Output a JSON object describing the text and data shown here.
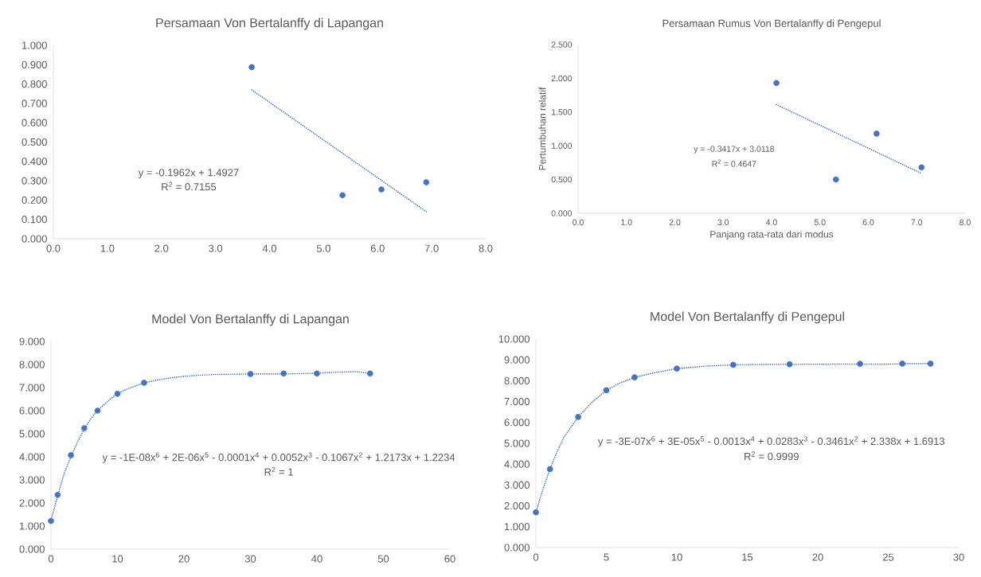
{
  "chart_data": [
    {
      "type": "scatter",
      "title": "Persamaan Von Bertalanffy di Lapangan",
      "xlim": [
        0,
        8
      ],
      "xticks": [
        {
          "value": 0,
          "label": "0.0"
        },
        {
          "value": 1,
          "label": "1.0"
        },
        {
          "value": 2,
          "label": "2.0"
        },
        {
          "value": 3,
          "label": "3.0"
        },
        {
          "value": 4,
          "label": "4.0"
        },
        {
          "value": 5,
          "label": "5.0"
        },
        {
          "value": 6,
          "label": "6.0"
        },
        {
          "value": 7,
          "label": "7.0"
        },
        {
          "value": 8,
          "label": "8.0"
        }
      ],
      "ylim": [
        0,
        1
      ],
      "yticks": [
        {
          "value": 0,
          "label": "0.000"
        },
        {
          "value": 0.1,
          "label": "0.100"
        },
        {
          "value": 0.2,
          "label": "0.200"
        },
        {
          "value": 0.3,
          "label": "0.300"
        },
        {
          "value": 0.4,
          "label": "0.400"
        },
        {
          "value": 0.5,
          "label": "0.500"
        },
        {
          "value": 0.6,
          "label": "0.600"
        },
        {
          "value": 0.7,
          "label": "0.700"
        },
        {
          "value": 0.8,
          "label": "0.800"
        },
        {
          "value": 0.9,
          "label": "0.900"
        },
        {
          "value": 1,
          "label": "1.000"
        }
      ],
      "series": [
        {
          "color": "#4472c4",
          "marker": "circle",
          "x": [
            3.67,
            5.35,
            6.07,
            6.9
          ],
          "values": [
            0.887,
            0.225,
            0.255,
            0.292
          ]
        },
        {
          "type": "line",
          "color": "#4472c4",
          "marker": "none",
          "line_style": "dotted",
          "x": [
            3.67,
            6.9
          ],
          "values": [
            0.77,
            0.14
          ]
        }
      ],
      "annotations": [
        "y = -0.1962x + 1.4927",
        "R$^{2}$ = 0.7155"
      ]
    },
    {
      "type": "scatter",
      "title": "Persamaan Rumus Von Bertalanffy di Pengepul",
      "xlabel": "Panjang rata-rata dari modus",
      "ylabel": "Pertumbuhan relatif",
      "xlim": [
        0,
        8
      ],
      "xticks": [
        {
          "value": 0,
          "label": "0.0"
        },
        {
          "value": 1,
          "label": "1.0"
        },
        {
          "value": 2,
          "label": "2.0"
        },
        {
          "value": 3,
          "label": "3.0"
        },
        {
          "value": 4,
          "label": "4.0"
        },
        {
          "value": 5,
          "label": "5.0"
        },
        {
          "value": 6,
          "label": "6.0"
        },
        {
          "value": 7,
          "label": "7.0"
        },
        {
          "value": 8,
          "label": "8.0"
        }
      ],
      "ylim": [
        0,
        2.5
      ],
      "yticks": [
        {
          "value": 0,
          "label": "0.000"
        },
        {
          "value": 0.5,
          "label": "0.500"
        },
        {
          "value": 1,
          "label": "1.000"
        },
        {
          "value": 1.5,
          "label": "1.500"
        },
        {
          "value": 2,
          "label": "2.000"
        },
        {
          "value": 2.5,
          "label": "2.500"
        }
      ],
      "series": [
        {
          "color": "#4472c4",
          "marker": "circle",
          "x": [
            4.1,
            5.33,
            6.17,
            7.1
          ],
          "values": [
            1.93,
            0.5,
            1.18,
            0.68
          ]
        },
        {
          "type": "line",
          "color": "#4472c4",
          "marker": "none",
          "line_style": "dotted",
          "x": [
            4.1,
            7.1
          ],
          "values": [
            1.61,
            0.59
          ]
        }
      ],
      "annotations": [
        "y = -0.3417x + 3.0118",
        "R$^{2}$ = 0.4647"
      ]
    },
    {
      "type": "scatter",
      "title": "Model Von Bertalanffy di Lapangan",
      "xlim": [
        0,
        60
      ],
      "xticks": [
        0,
        10,
        20,
        30,
        40,
        50,
        60
      ],
      "ylim": [
        0,
        9
      ],
      "yticks": [
        {
          "value": 0,
          "label": "0.000"
        },
        {
          "value": 1,
          "label": "1.000"
        },
        {
          "value": 2,
          "label": "2.000"
        },
        {
          "value": 3,
          "label": "3.000"
        },
        {
          "value": 4,
          "label": "4.000"
        },
        {
          "value": 5,
          "label": "5.000"
        },
        {
          "value": 6,
          "label": "6.000"
        },
        {
          "value": 7,
          "label": "7.000"
        },
        {
          "value": 8,
          "label": "8.000"
        },
        {
          "value": 9,
          "label": "9.000"
        }
      ],
      "series": [
        {
          "color": "#4472c4",
          "marker": "circle",
          "x": [
            0,
            1,
            3,
            5,
            7,
            10,
            14,
            30,
            35,
            40,
            48
          ],
          "values": [
            1.22,
            2.35,
            4.07,
            5.24,
            6.0,
            6.73,
            7.21,
            7.59,
            7.61,
            7.61,
            7.61
          ]
        },
        {
          "type": "line",
          "color": "#4472c4",
          "marker": "none",
          "line_style": "dotted",
          "x": [
            0,
            1,
            2,
            3,
            4,
            5,
            6,
            7,
            8.5,
            10,
            12,
            14,
            16,
            18,
            20,
            22,
            25,
            28,
            30,
            35,
            40,
            43,
            46,
            48
          ],
          "values": [
            1.25,
            2.3,
            3.3,
            4.0,
            4.65,
            5.2,
            5.65,
            6.0,
            6.4,
            6.75,
            7.0,
            7.2,
            7.33,
            7.42,
            7.49,
            7.53,
            7.57,
            7.58,
            7.59,
            7.59,
            7.62,
            7.67,
            7.69,
            7.61
          ]
        }
      ],
      "annotations": [
        "y = -1E-08x$^{6}$ + 2E-06x$^{5}$ - 0.0001x$^{4}$ + 0.0052x$^{3}$ - 0.1067x$^{2}$ + 1.2173x + 1.2234",
        "R$^{2}$ = 1"
      ]
    },
    {
      "type": "scatter",
      "title": "Model Von Bertalanffy di Pengepul",
      "xlim": [
        0,
        30
      ],
      "xticks": [
        0,
        5,
        10,
        15,
        20,
        25,
        30
      ],
      "ylim": [
        0,
        10
      ],
      "yticks": [
        {
          "value": 0,
          "label": "0.000"
        },
        {
          "value": 1,
          "label": "1.000"
        },
        {
          "value": 2,
          "label": "2.000"
        },
        {
          "value": 3,
          "label": "3.000"
        },
        {
          "value": 4,
          "label": "4.000"
        },
        {
          "value": 5,
          "label": "5.000"
        },
        {
          "value": 6,
          "label": "6.000"
        },
        {
          "value": 7,
          "label": "7.000"
        },
        {
          "value": 8,
          "label": "8.000"
        },
        {
          "value": 9,
          "label": "9.000"
        },
        {
          "value": 10,
          "label": "10.000"
        }
      ],
      "series": [
        {
          "color": "#4472c4",
          "marker": "circle",
          "x": [
            0,
            1,
            3,
            5,
            7,
            10,
            14,
            18,
            23,
            26,
            28
          ],
          "values": [
            1.69,
            3.76,
            6.26,
            7.54,
            8.16,
            8.58,
            8.76,
            8.79,
            8.81,
            8.82,
            8.82
          ]
        },
        {
          "type": "line",
          "color": "#4472c4",
          "marker": "none",
          "line_style": "dotted",
          "x": [
            0,
            0.5,
            1,
            1.5,
            2,
            3,
            4,
            5,
            6,
            7,
            8.5,
            10,
            12,
            14,
            16,
            18,
            20,
            23,
            25,
            26,
            28
          ],
          "values": [
            1.69,
            2.8,
            3.76,
            4.6,
            5.3,
            6.26,
            6.98,
            7.54,
            7.9,
            8.16,
            8.4,
            8.58,
            8.7,
            8.76,
            8.78,
            8.79,
            8.79,
            8.8,
            8.79,
            8.82,
            8.82
          ]
        }
      ],
      "annotations": [
        "y = -3E-07x$^{6}$ + 3E-05x$^{5}$ - 0.0013x$^{4}$ + 0.0283x$^{3}$ - 0.3461x$^{2}$ + 2.338x + 1.6913",
        "R$^{2}$ = 0.9999"
      ]
    }
  ]
}
